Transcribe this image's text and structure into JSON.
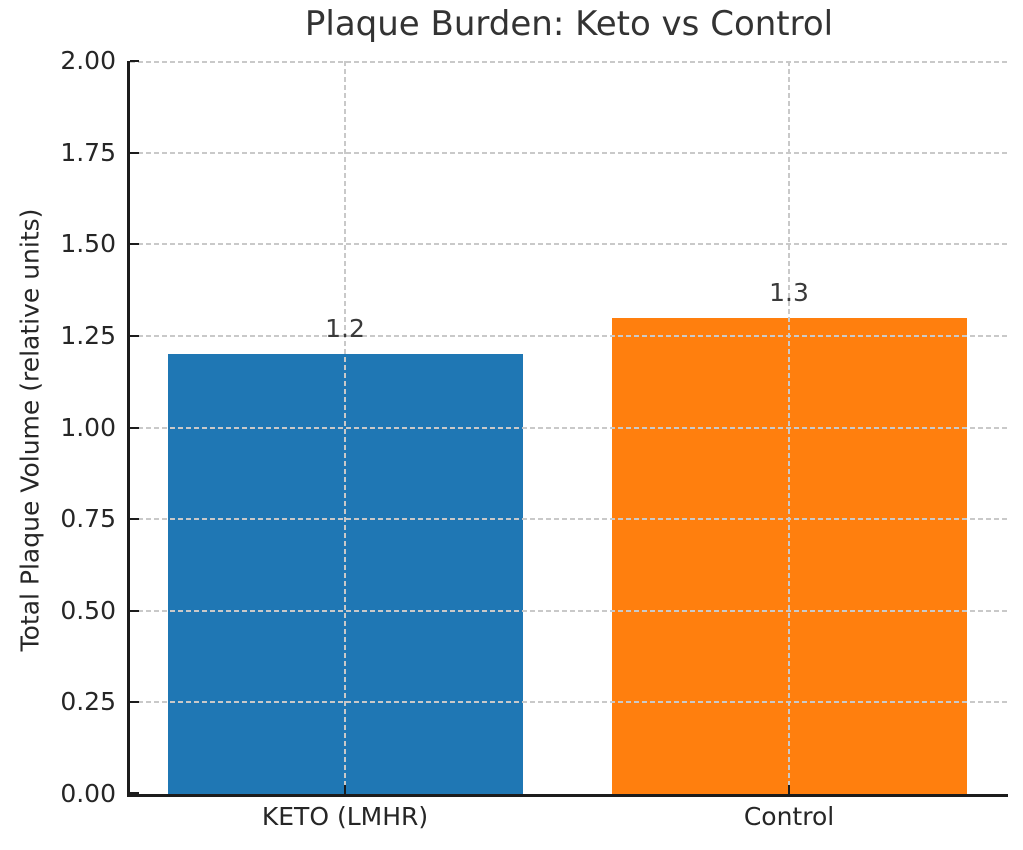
{
  "chart_data": {
    "type": "bar",
    "title": "Plaque Burden: Keto vs Control",
    "ylabel": "Total Plaque Volume (relative units)",
    "xlabel": "",
    "categories": [
      "KETO (LMHR)",
      "Control"
    ],
    "values": [
      1.2,
      1.3
    ],
    "value_labels": [
      "1.2",
      "1.3"
    ],
    "bar_colors": [
      "#1f77b4",
      "#ff7f0e"
    ],
    "ylim": [
      0,
      2
    ],
    "ytick_step": 0.25,
    "ytick_labels": [
      "0.00",
      "0.25",
      "0.50",
      "0.75",
      "1.00",
      "1.25",
      "1.50",
      "1.75",
      "2.00"
    ],
    "grid": {
      "linestyle": "dashed",
      "color": "#c9c9c9",
      "horizontal": true,
      "vertical": true,
      "drawn_above_bars": true
    },
    "legend": null,
    "tick_direction": "in",
    "colors": {
      "text": "#262626",
      "spine": "#1c1c1c",
      "background": "#ffffff"
    }
  }
}
